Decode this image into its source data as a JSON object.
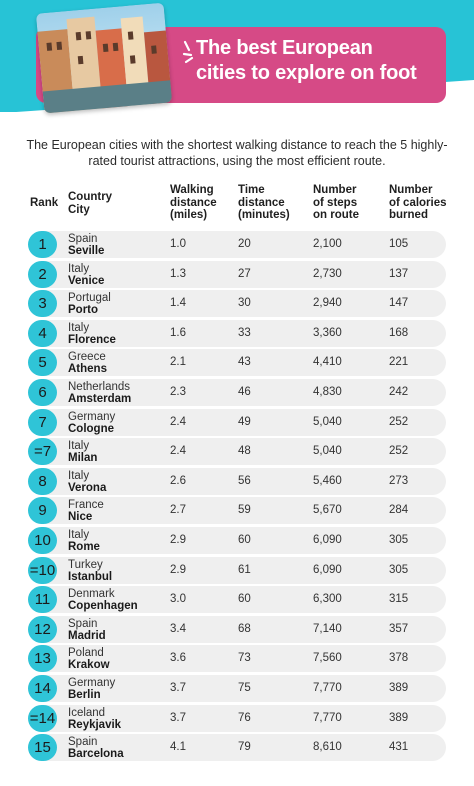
{
  "header": {
    "title_line1": "The best European",
    "title_line2": "cities to explore on foot",
    "colors": {
      "teal": "#27c3d6",
      "pink": "#d64a86"
    }
  },
  "subtitle": "The European cities with the shortest walking distance to reach the 5 highly-rated tourist attractions, using the most efficient route.",
  "table": {
    "headers": {
      "rank": "Rank",
      "country": "Country",
      "city": "City",
      "walk1": "Walking",
      "walk2": "distance",
      "walk3": "(miles)",
      "time1": "Time",
      "time2": "distance",
      "time3": "(minutes)",
      "steps1": "Number",
      "steps2": "of steps",
      "steps3": "on route",
      "cal1": "Number",
      "cal2": "of calories",
      "cal3": "burned"
    },
    "rows": [
      {
        "rank": "1",
        "country": "Spain",
        "city": "Seville",
        "miles": "1.0",
        "minutes": "20",
        "steps": "2,100",
        "calories": "105"
      },
      {
        "rank": "2",
        "country": "Italy",
        "city": "Venice",
        "miles": "1.3",
        "minutes": "27",
        "steps": "2,730",
        "calories": "137"
      },
      {
        "rank": "3",
        "country": "Portugal",
        "city": "Porto",
        "miles": "1.4",
        "minutes": "30",
        "steps": "2,940",
        "calories": "147"
      },
      {
        "rank": "4",
        "country": "Italy",
        "city": "Florence",
        "miles": "1.6",
        "minutes": "33",
        "steps": "3,360",
        "calories": "168"
      },
      {
        "rank": "5",
        "country": "Greece",
        "city": "Athens",
        "miles": "2.1",
        "minutes": "43",
        "steps": "4,410",
        "calories": "221"
      },
      {
        "rank": "6",
        "country": "Netherlands",
        "city": "Amsterdam",
        "miles": "2.3",
        "minutes": "46",
        "steps": "4,830",
        "calories": "242"
      },
      {
        "rank": "7",
        "country": "Germany",
        "city": "Cologne",
        "miles": "2.4",
        "minutes": "49",
        "steps": "5,040",
        "calories": "252"
      },
      {
        "rank": "=7",
        "country": "Italy",
        "city": "Milan",
        "miles": "2.4",
        "minutes": "48",
        "steps": "5,040",
        "calories": "252"
      },
      {
        "rank": "8",
        "country": "Italy",
        "city": "Verona",
        "miles": "2.6",
        "minutes": "56",
        "steps": "5,460",
        "calories": "273"
      },
      {
        "rank": "9",
        "country": "France",
        "city": "Nice",
        "miles": "2.7",
        "minutes": "59",
        "steps": "5,670",
        "calories": "284"
      },
      {
        "rank": "10",
        "country": "Italy",
        "city": "Rome",
        "miles": "2.9",
        "minutes": "60",
        "steps": "6,090",
        "calories": "305"
      },
      {
        "rank": "=10",
        "country": "Turkey",
        "city": "Istanbul",
        "miles": "2.9",
        "minutes": "61",
        "steps": "6,090",
        "calories": "305"
      },
      {
        "rank": "11",
        "country": "Denmark",
        "city": "Copenhagen",
        "miles": "3.0",
        "minutes": "60",
        "steps": "6,300",
        "calories": "315"
      },
      {
        "rank": "12",
        "country": "Spain",
        "city": "Madrid",
        "miles": "3.4",
        "minutes": "68",
        "steps": "7,140",
        "calories": "357"
      },
      {
        "rank": "13",
        "country": "Poland",
        "city": "Krakow",
        "miles": "3.6",
        "minutes": "73",
        "steps": "7,560",
        "calories": "378"
      },
      {
        "rank": "14",
        "country": "Germany",
        "city": "Berlin",
        "miles": "3.7",
        "minutes": "75",
        "steps": "7,770",
        "calories": "389"
      },
      {
        "rank": "=14",
        "country": "Iceland",
        "city": "Reykjavik",
        "miles": "3.7",
        "minutes": "76",
        "steps": "7,770",
        "calories": "389"
      },
      {
        "rank": "15",
        "country": "Spain",
        "city": "Barcelona",
        "miles": "4.1",
        "minutes": "79",
        "steps": "8,610",
        "calories": "431"
      }
    ]
  }
}
